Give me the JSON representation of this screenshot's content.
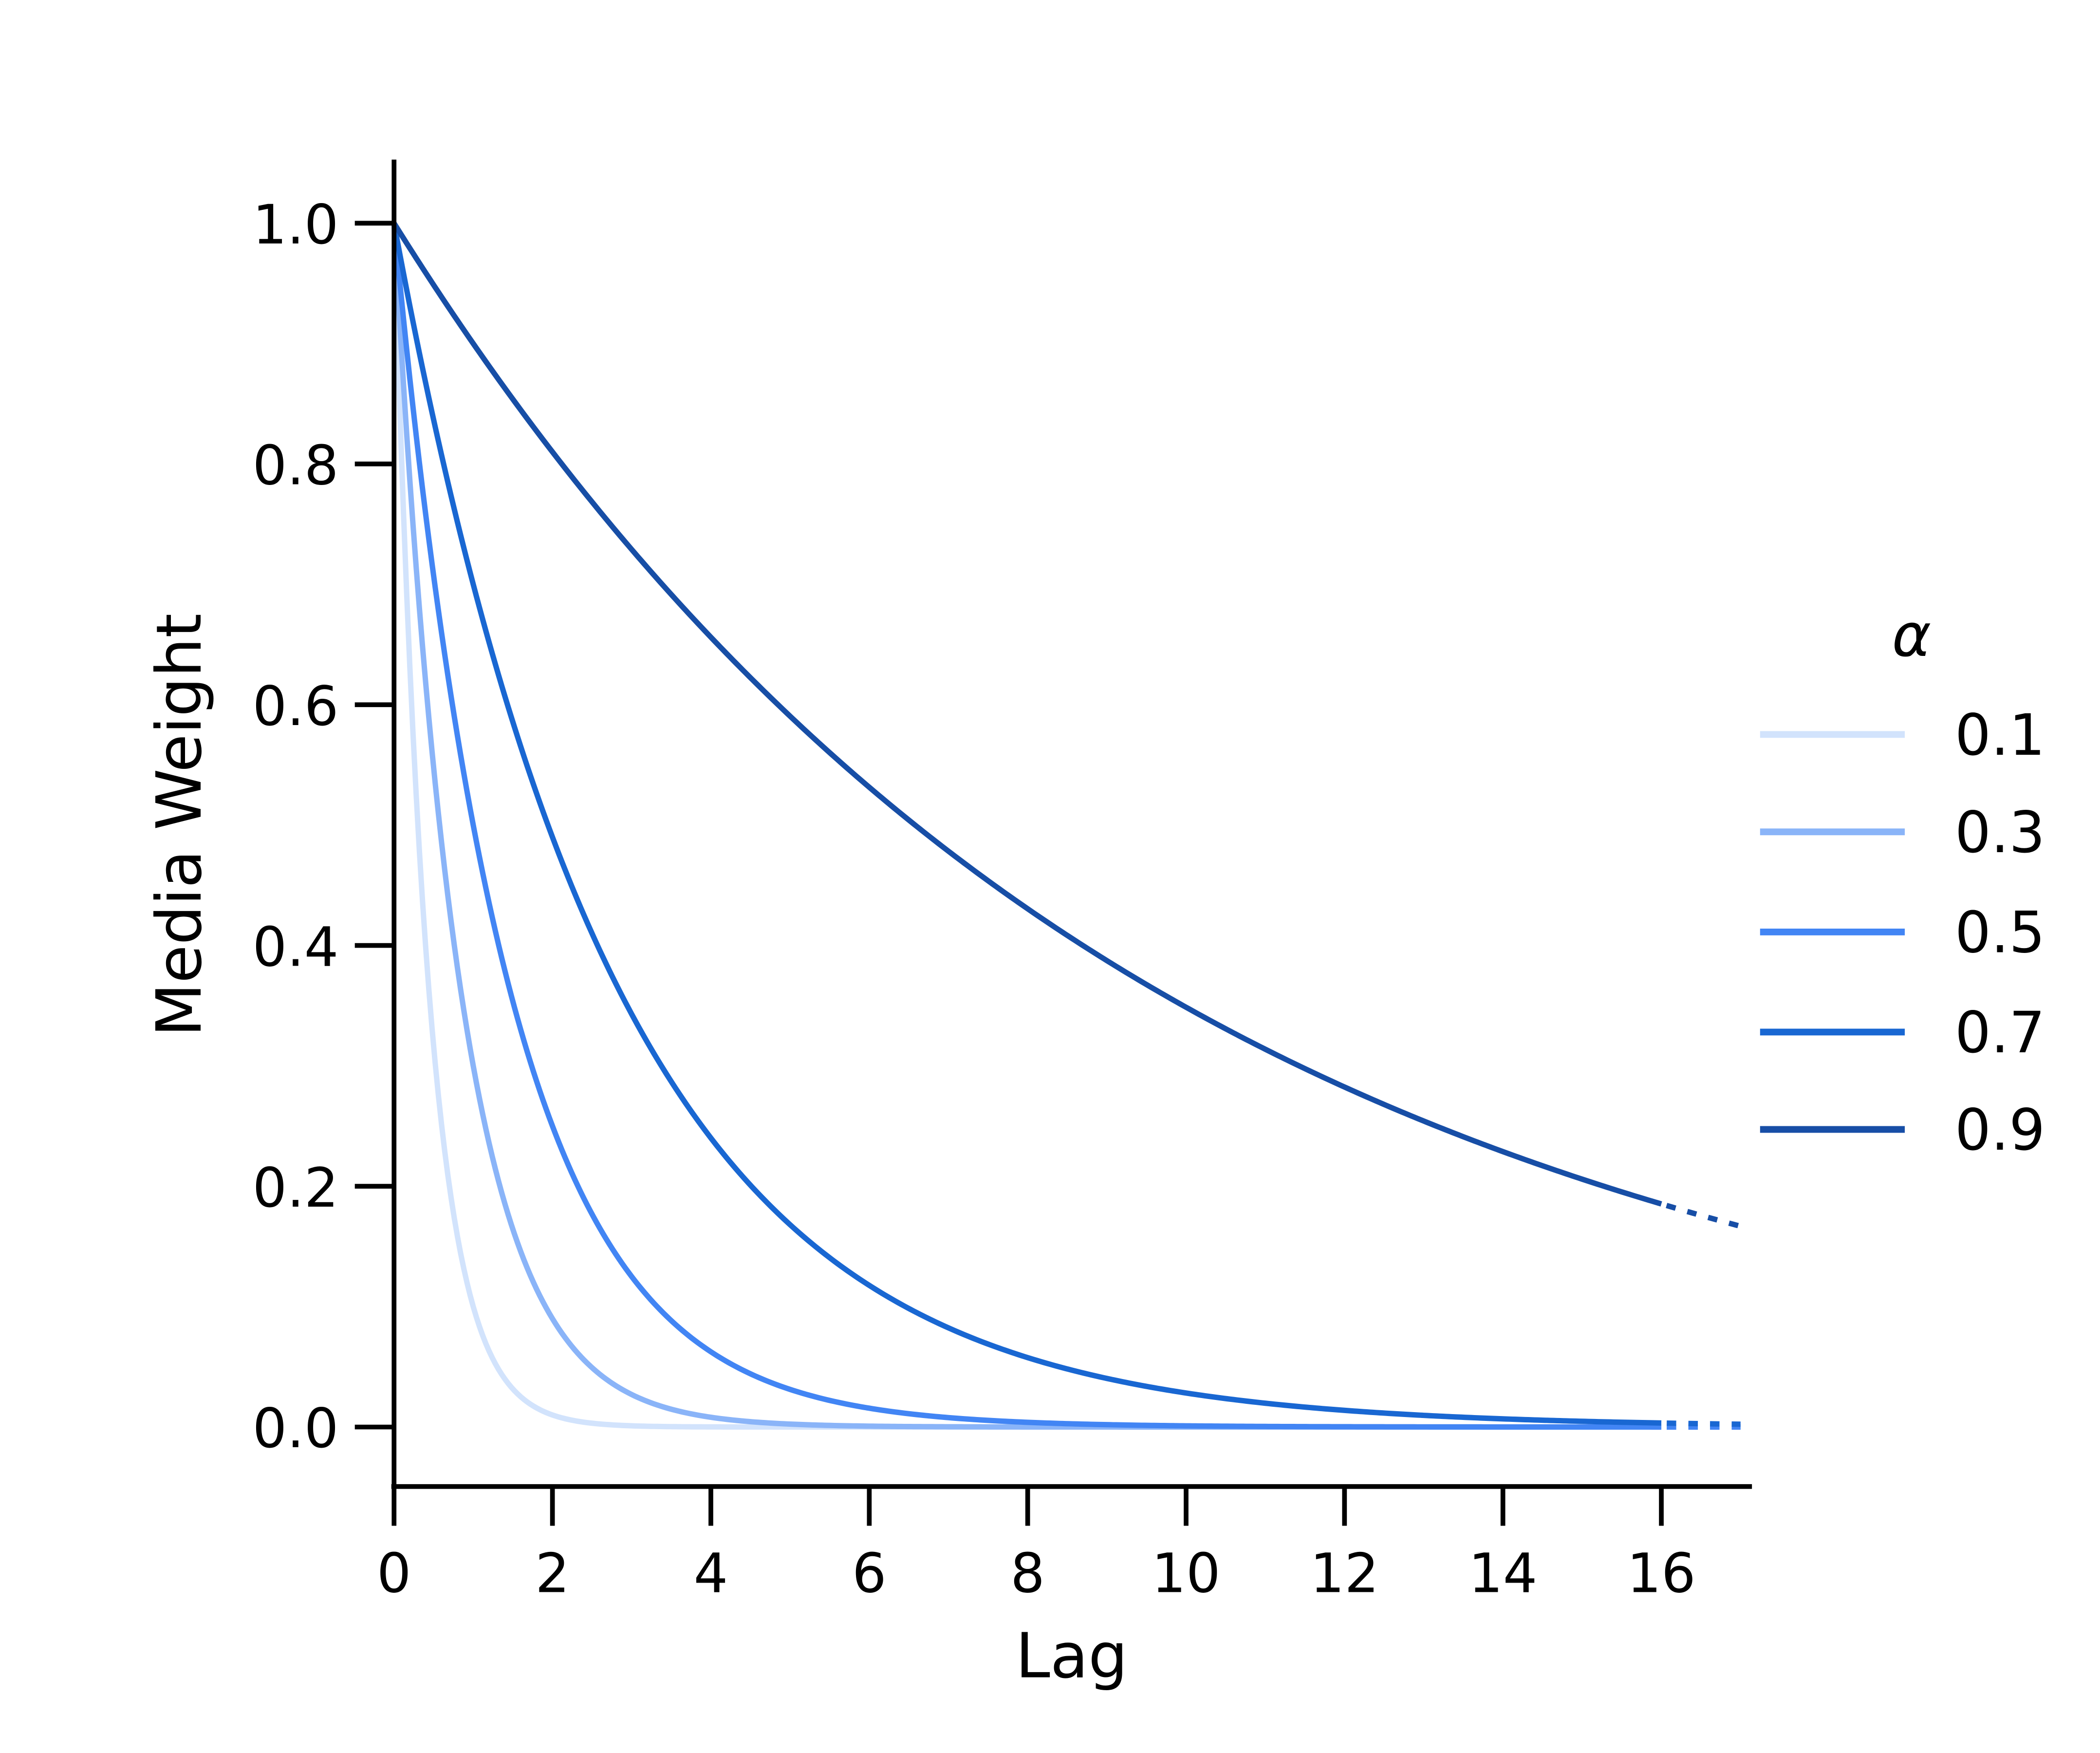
{
  "chart_data": {
    "type": "line",
    "title": "",
    "xlabel": "Lag",
    "ylabel": "Media Weight",
    "xlim": [
      0,
      17.1
    ],
    "ylim": [
      -0.05,
      1.05
    ],
    "xticks": [
      "0",
      "2",
      "4",
      "6",
      "8",
      "10",
      "12",
      "14",
      "16"
    ],
    "yticks": [
      "0.0",
      "0.2",
      "0.4",
      "0.6",
      "0.8",
      "1.0"
    ],
    "grid": false,
    "legend": {
      "title": "α",
      "placement": "right"
    },
    "function": "weight = alpha^lag",
    "x_solid_range": [
      0,
      16
    ],
    "x_dotted_range": [
      16,
      17
    ],
    "series": [
      {
        "name": "0.1",
        "alpha": 0.1,
        "color": "#d2e3fc"
      },
      {
        "name": "0.3",
        "alpha": 0.3,
        "color": "#8ab4f8"
      },
      {
        "name": "0.5",
        "alpha": 0.5,
        "color": "#4285f4"
      },
      {
        "name": "0.7",
        "alpha": 0.7,
        "color": "#1967d2"
      },
      {
        "name": "0.9",
        "alpha": 0.9,
        "color": "#174ea6"
      }
    ]
  }
}
